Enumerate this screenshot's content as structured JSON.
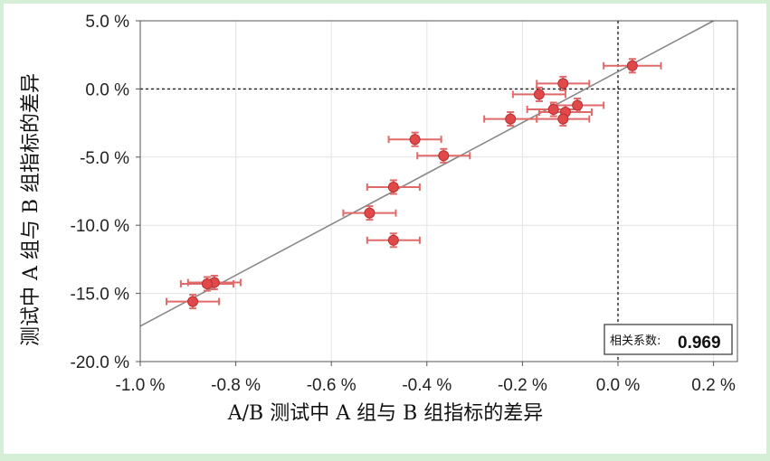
{
  "chart_data": {
    "type": "scatter",
    "title": "",
    "xlabel": "A/B 测试中 A 组与 B 组指标的差异",
    "ylabel": "测试中 A 组与 B 组指标的差异",
    "xlim": [
      -1.0,
      0.25
    ],
    "ylim": [
      -20.0,
      5.0
    ],
    "xticks": [
      -1.0,
      -0.8,
      -0.6,
      -0.4,
      -0.2,
      0.0,
      0.2
    ],
    "xtick_labels": [
      "-1.0 %",
      "-0.8 %",
      "-0.6 %",
      "-0.4 %",
      "-0.2 %",
      "0.0 %",
      "0.2 %"
    ],
    "yticks": [
      5.0,
      0.0,
      -5.0,
      -10.0,
      -15.0,
      -20.0
    ],
    "ytick_labels": [
      "5.0 %",
      "0.0 %",
      "-5.0 %",
      "-10.0 %",
      "-15.0 %",
      "-20.0 %"
    ],
    "grid": true,
    "point_color": "#e0484a",
    "errorbar_color": "#e06a6a",
    "fit_line": {
      "x": [
        -1.0,
        0.2
      ],
      "y": [
        -17.4,
        5.0
      ],
      "color": "#888888"
    },
    "reference_lines": {
      "x": 0.0,
      "y": 0.0,
      "style": "dotted"
    },
    "points": [
      {
        "x": 0.03,
        "y": 1.7,
        "xerr": 0.06,
        "yerr": 0.5
      },
      {
        "x": -0.115,
        "y": 0.4,
        "xerr": 0.055,
        "yerr": 0.5
      },
      {
        "x": -0.165,
        "y": -0.4,
        "xerr": 0.055,
        "yerr": 0.5
      },
      {
        "x": -0.085,
        "y": -1.2,
        "xerr": 0.055,
        "yerr": 0.5
      },
      {
        "x": -0.135,
        "y": -1.5,
        "xerr": 0.055,
        "yerr": 0.5
      },
      {
        "x": -0.11,
        "y": -1.7,
        "xerr": 0.055,
        "yerr": 0.5
      },
      {
        "x": -0.115,
        "y": -2.2,
        "xerr": 0.055,
        "yerr": 0.5
      },
      {
        "x": -0.225,
        "y": -2.2,
        "xerr": 0.055,
        "yerr": 0.5
      },
      {
        "x": -0.425,
        "y": -3.7,
        "xerr": 0.055,
        "yerr": 0.5
      },
      {
        "x": -0.365,
        "y": -4.9,
        "xerr": 0.055,
        "yerr": 0.5
      },
      {
        "x": -0.47,
        "y": -7.2,
        "xerr": 0.055,
        "yerr": 0.5
      },
      {
        "x": -0.52,
        "y": -9.1,
        "xerr": 0.055,
        "yerr": 0.5
      },
      {
        "x": -0.47,
        "y": -11.1,
        "xerr": 0.055,
        "yerr": 0.5
      },
      {
        "x": -0.845,
        "y": -14.2,
        "xerr": 0.055,
        "yerr": 0.5
      },
      {
        "x": -0.86,
        "y": -14.3,
        "xerr": 0.055,
        "yerr": 0.5
      },
      {
        "x": -0.89,
        "y": -15.6,
        "xerr": 0.055,
        "yerr": 0.5
      }
    ],
    "annotation": {
      "label": "相关系数:",
      "value": "0.969",
      "position": "bottom-right"
    }
  }
}
